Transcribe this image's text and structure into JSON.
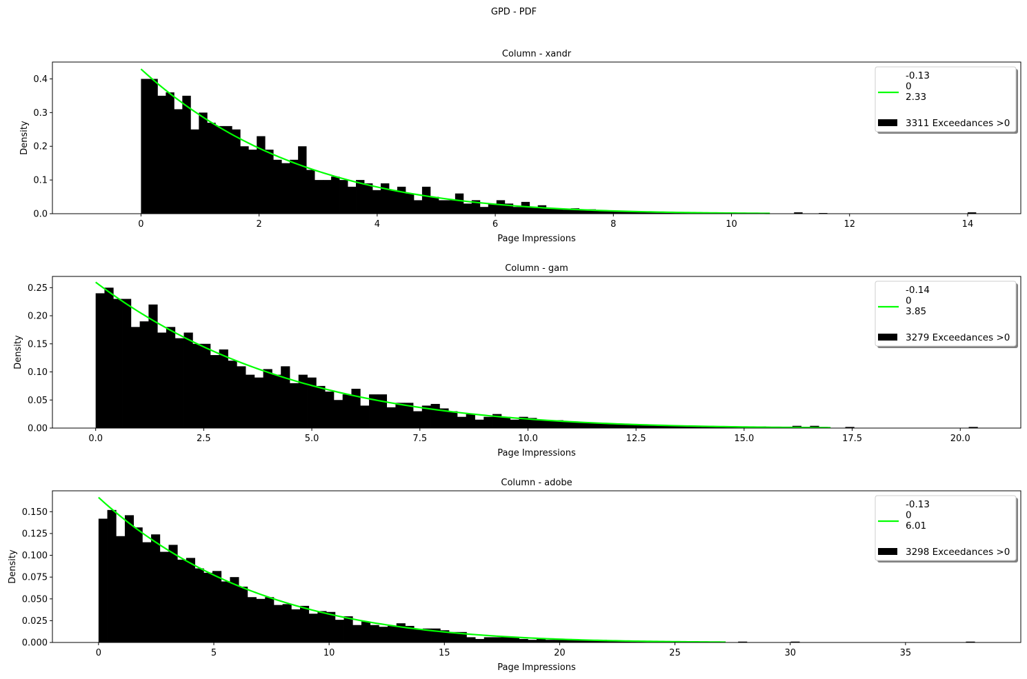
{
  "figure": {
    "title": "GPD - PDF"
  },
  "chart_data": [
    {
      "type": "bar",
      "title": "Column - xandr",
      "xlabel": "Page Impressions",
      "ylabel": "Density",
      "xlim": [
        -1.5,
        14.9
      ],
      "ylim": [
        0,
        0.45
      ],
      "xticks": [
        0,
        2,
        4,
        6,
        8,
        10,
        12,
        14
      ],
      "yticks": [
        0.0,
        0.1,
        0.2,
        0.3,
        0.4
      ],
      "bin_start": 0,
      "bin_width": 0.14,
      "values": [
        0.4,
        0.4,
        0.35,
        0.36,
        0.31,
        0.35,
        0.25,
        0.3,
        0.27,
        0.26,
        0.26,
        0.25,
        0.2,
        0.19,
        0.23,
        0.19,
        0.16,
        0.15,
        0.16,
        0.2,
        0.13,
        0.1,
        0.1,
        0.11,
        0.1,
        0.08,
        0.1,
        0.09,
        0.07,
        0.09,
        0.07,
        0.08,
        0.06,
        0.04,
        0.08,
        0.05,
        0.04,
        0.04,
        0.06,
        0.03,
        0.04,
        0.02,
        0.03,
        0.04,
        0.03,
        0.02,
        0.035,
        0.02,
        0.025,
        0.015,
        0.015,
        0.012,
        0.016,
        0.012,
        0.013,
        0.01,
        0.009,
        0.007,
        0.008,
        0.006,
        0.007,
        0.005,
        0.006,
        0.004,
        0.005,
        0.003,
        0.004,
        0.003,
        0.003,
        0.002,
        0.002,
        0,
        0,
        0,
        0,
        0,
        0,
        0,
        0,
        0.004,
        0,
        0,
        0.002,
        0,
        0,
        0,
        0,
        0,
        0,
        0,
        0,
        0,
        0,
        0,
        0,
        0,
        0,
        0,
        0,
        0,
        0.004
      ],
      "fit": {
        "xi": -0.13,
        "mu": 0,
        "sigma": 2.33,
        "x_end": 10.65
      },
      "legend": {
        "placement": "upper right",
        "line_lines": [
          "-0.13",
          "0",
          "2.33"
        ],
        "bars_label": "3311 Exceedances >0"
      }
    },
    {
      "type": "bar",
      "title": "Column - gam",
      "xlabel": "Page Impressions",
      "ylabel": "Density",
      "xlim": [
        -1.0,
        21.4
      ],
      "ylim": [
        0,
        0.27
      ],
      "xticks": [
        0.0,
        2.5,
        5.0,
        7.5,
        10.0,
        12.5,
        15.0,
        17.5,
        20.0
      ],
      "yticks": [
        0.0,
        0.05,
        0.1,
        0.15,
        0.2,
        0.25
      ],
      "bin_start": 0,
      "bin_width": 0.204,
      "values": [
        0.24,
        0.25,
        0.23,
        0.23,
        0.18,
        0.19,
        0.22,
        0.17,
        0.18,
        0.16,
        0.17,
        0.15,
        0.15,
        0.13,
        0.14,
        0.12,
        0.11,
        0.095,
        0.09,
        0.105,
        0.095,
        0.11,
        0.08,
        0.095,
        0.09,
        0.075,
        0.065,
        0.05,
        0.06,
        0.07,
        0.04,
        0.06,
        0.06,
        0.037,
        0.045,
        0.045,
        0.03,
        0.04,
        0.043,
        0.035,
        0.03,
        0.02,
        0.025,
        0.015,
        0.02,
        0.025,
        0.02,
        0.015,
        0.02,
        0.018,
        0.015,
        0.013,
        0.014,
        0.012,
        0.011,
        0.01,
        0.009,
        0.009,
        0.008,
        0.007,
        0.006,
        0.006,
        0.006,
        0.005,
        0.005,
        0.004,
        0.004,
        0.003,
        0.003,
        0.003,
        0.002,
        0.002,
        0.002,
        0.002,
        0.002,
        0.003,
        0.002,
        0.002,
        0.002,
        0.004,
        0.002,
        0.004,
        0.002,
        0,
        0,
        0.002,
        0,
        0,
        0,
        0,
        0,
        0,
        0,
        0,
        0,
        0,
        0,
        0,
        0,
        0.002
      ],
      "fit": {
        "xi": -0.14,
        "mu": 0,
        "sigma": 3.85,
        "x_end": 17.0
      },
      "legend": {
        "placement": "upper right",
        "line_lines": [
          "-0.14",
          "0",
          "3.85"
        ],
        "bars_label": "3279 Exceedances >0"
      }
    },
    {
      "type": "bar",
      "title": "Column - adobe",
      "xlabel": "Page Impressions",
      "ylabel": "Density",
      "xlim": [
        -2.0,
        40.0
      ],
      "ylim": [
        0,
        0.174
      ],
      "xticks": [
        0,
        5,
        10,
        15,
        20,
        25,
        30,
        35
      ],
      "yticks": [
        0.0,
        0.025,
        0.05,
        0.075,
        0.1,
        0.125,
        0.15
      ],
      "bin_start": 0,
      "bin_width": 0.38,
      "values": [
        0.142,
        0.152,
        0.122,
        0.146,
        0.132,
        0.115,
        0.124,
        0.104,
        0.112,
        0.095,
        0.097,
        0.085,
        0.08,
        0.082,
        0.07,
        0.075,
        0.064,
        0.052,
        0.05,
        0.052,
        0.043,
        0.044,
        0.038,
        0.042,
        0.033,
        0.036,
        0.035,
        0.026,
        0.03,
        0.02,
        0.024,
        0.02,
        0.018,
        0.019,
        0.022,
        0.019,
        0.015,
        0.016,
        0.016,
        0.014,
        0.012,
        0.012,
        0.006,
        0.004,
        0.006,
        0.006,
        0.007,
        0.006,
        0.004,
        0.003,
        0.004,
        0.003,
        0.003,
        0.004,
        0.003,
        0.003,
        0.002,
        0.003,
        0.002,
        0.002,
        0.001,
        0.001,
        0.001,
        0.001,
        0.001,
        0.001,
        0.0005,
        0.0005,
        0.0005,
        0,
        0,
        0,
        0,
        0.001,
        0,
        0,
        0,
        0,
        0,
        0.001,
        0,
        0,
        0,
        0,
        0,
        0,
        0,
        0,
        0,
        0,
        0,
        0,
        0,
        0,
        0,
        0,
        0,
        0,
        0,
        0.001
      ],
      "fit": {
        "xi": -0.13,
        "mu": 0,
        "sigma": 6.01,
        "x_end": 27.2
      },
      "legend": {
        "placement": "upper right",
        "line_lines": [
          "-0.13",
          "0",
          "6.01"
        ],
        "bars_label": "3298 Exceedances >0"
      }
    }
  ],
  "colors": {
    "bars": "#000000",
    "fit_line": "#00ff00",
    "axes": "#000000",
    "legend_border": "#cccccc",
    "legend_shadow": "#808080"
  }
}
